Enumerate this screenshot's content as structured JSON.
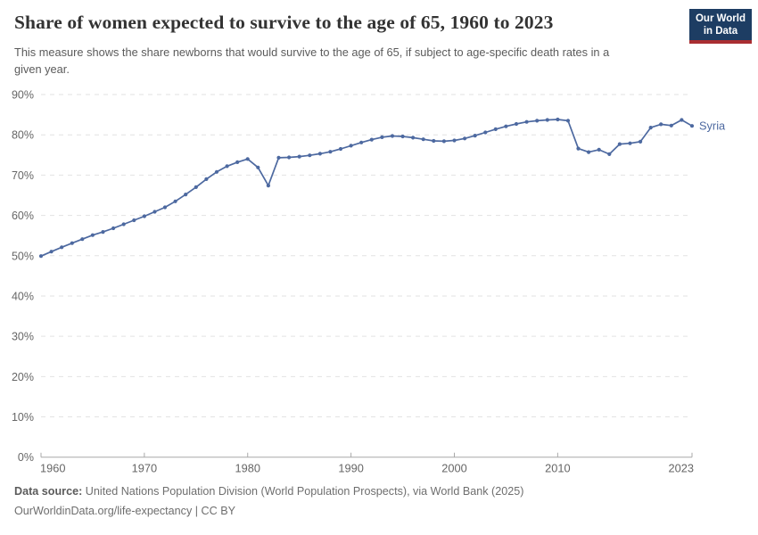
{
  "header": {
    "title": "Share of women expected to survive to the age of 65, 1960 to 2023",
    "subtitle": "This measure shows the share newborns that would survive to the age of 65, if subject to age-specific death rates in a given year.",
    "logo": {
      "line1": "Our World",
      "line2": "in Data"
    }
  },
  "chart_data": {
    "type": "line",
    "title": "Share of women expected to survive to the age of 65, 1960 to 2023",
    "xlabel": "",
    "ylabel": "",
    "xlim": [
      1960,
      2023
    ],
    "ylim": [
      0,
      90
    ],
    "yticks": [
      0,
      10,
      20,
      30,
      40,
      50,
      60,
      70,
      80,
      90
    ],
    "ytick_suffix": "%",
    "xticks": [
      1960,
      1970,
      1980,
      1990,
      2000,
      2010,
      2023
    ],
    "grid": "horizontal-dashed",
    "legend": "end-of-line-label",
    "series": [
      {
        "name": "Syria",
        "color": "#4d69a0",
        "x": [
          1960,
          1961,
          1962,
          1963,
          1964,
          1965,
          1966,
          1967,
          1968,
          1969,
          1970,
          1971,
          1972,
          1973,
          1974,
          1975,
          1976,
          1977,
          1978,
          1979,
          1980,
          1981,
          1982,
          1983,
          1984,
          1985,
          1986,
          1987,
          1988,
          1989,
          1990,
          1991,
          1992,
          1993,
          1994,
          1995,
          1996,
          1997,
          1998,
          1999,
          2000,
          2001,
          2002,
          2003,
          2004,
          2005,
          2006,
          2007,
          2008,
          2009,
          2010,
          2011,
          2012,
          2013,
          2014,
          2015,
          2016,
          2017,
          2018,
          2019,
          2020,
          2021,
          2022,
          2023
        ],
        "values": [
          49.9,
          51.0,
          52.1,
          53.1,
          54.1,
          55.1,
          55.9,
          56.8,
          57.8,
          58.8,
          59.8,
          60.9,
          62.0,
          63.5,
          65.2,
          67.0,
          69.0,
          70.8,
          72.2,
          73.2,
          74.0,
          71.9,
          67.4,
          74.3,
          74.4,
          74.6,
          74.9,
          75.3,
          75.8,
          76.5,
          77.3,
          78.1,
          78.8,
          79.4,
          79.7,
          79.6,
          79.3,
          78.9,
          78.5,
          78.4,
          78.6,
          79.1,
          79.8,
          80.6,
          81.4,
          82.1,
          82.7,
          83.2,
          83.5,
          83.7,
          83.8,
          83.5,
          76.6,
          75.7,
          76.3,
          75.2,
          77.7,
          77.9,
          78.3,
          81.8,
          82.6,
          82.3,
          83.7,
          82.2
        ]
      }
    ]
  },
  "footer": {
    "source_label": "Data source:",
    "source_text": " United Nations Population Division (World Population Prospects), via World Bank (2025)",
    "license_text": "OurWorldinData.org/life-expectancy | CC BY"
  },
  "colors": {
    "line": "#4d69a0",
    "grid": "#e2e2e2",
    "axis": "#a9a9a9",
    "tick_label": "#666666",
    "logo_bg": "#1d3d63",
    "logo_stripe": "#a92e32"
  }
}
